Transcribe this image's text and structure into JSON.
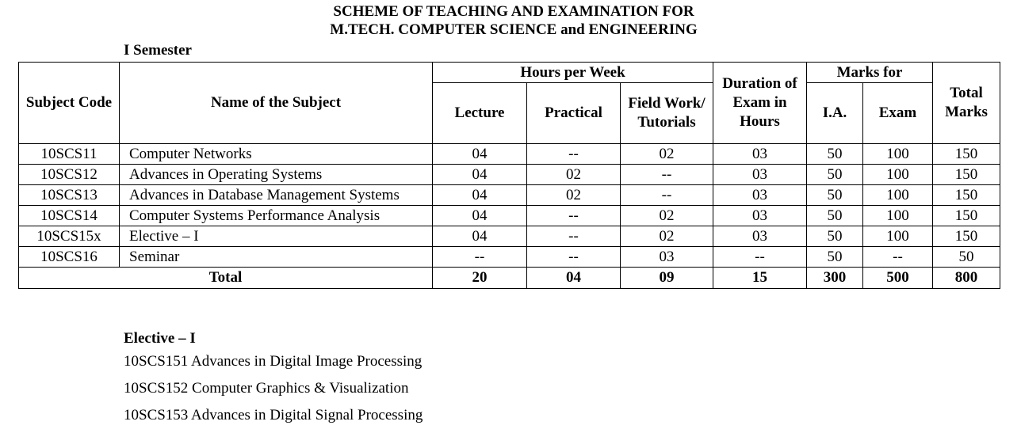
{
  "title_line1": "SCHEME OF TEACHING AND EXAMINATION FOR",
  "title_line2": "M.TECH. COMPUTER SCIENCE and ENGINEERING",
  "semester": "I Semester",
  "headers": {
    "code": "Subject Code",
    "name": "Name of the Subject",
    "hours": "Hours per Week",
    "lecture": "Lecture",
    "practical": "Practical",
    "field": "Field Work/ Tutorials",
    "duration": "Duration of Exam in Hours",
    "marks": "Marks for",
    "ia": "I.A.",
    "exam": "Exam",
    "total": "Total Marks"
  },
  "rows": [
    [
      "10SCS11",
      "Computer Networks",
      "04",
      "--",
      "02",
      "03",
      "50",
      "100",
      "150"
    ],
    [
      "10SCS12",
      "Advances in Operating Systems",
      "04",
      "02",
      "--",
      "03",
      "50",
      "100",
      "150"
    ],
    [
      "10SCS13",
      "Advances in Database Management Systems",
      "04",
      "02",
      "--",
      "03",
      "50",
      "100",
      "150"
    ],
    [
      "10SCS14",
      "Computer Systems Performance Analysis",
      "04",
      "--",
      "02",
      "03",
      "50",
      "100",
      "150"
    ],
    [
      "10SCS15x",
      "Elective – I",
      "04",
      "--",
      "02",
      "03",
      "50",
      "100",
      "150"
    ],
    [
      "10SCS16",
      "Seminar",
      "--",
      "--",
      "03",
      "--",
      "50",
      "--",
      "50"
    ]
  ],
  "total": {
    "label": "Total",
    "values": [
      "20",
      "04",
      "09",
      "15",
      "300",
      "500",
      "800"
    ]
  },
  "elective": {
    "heading": "Elective – I",
    "items": [
      "10SCS151 Advances in Digital Image Processing",
      "10SCS152 Computer Graphics & Visualization",
      "10SCS153 Advances in Digital Signal Processing"
    ]
  }
}
